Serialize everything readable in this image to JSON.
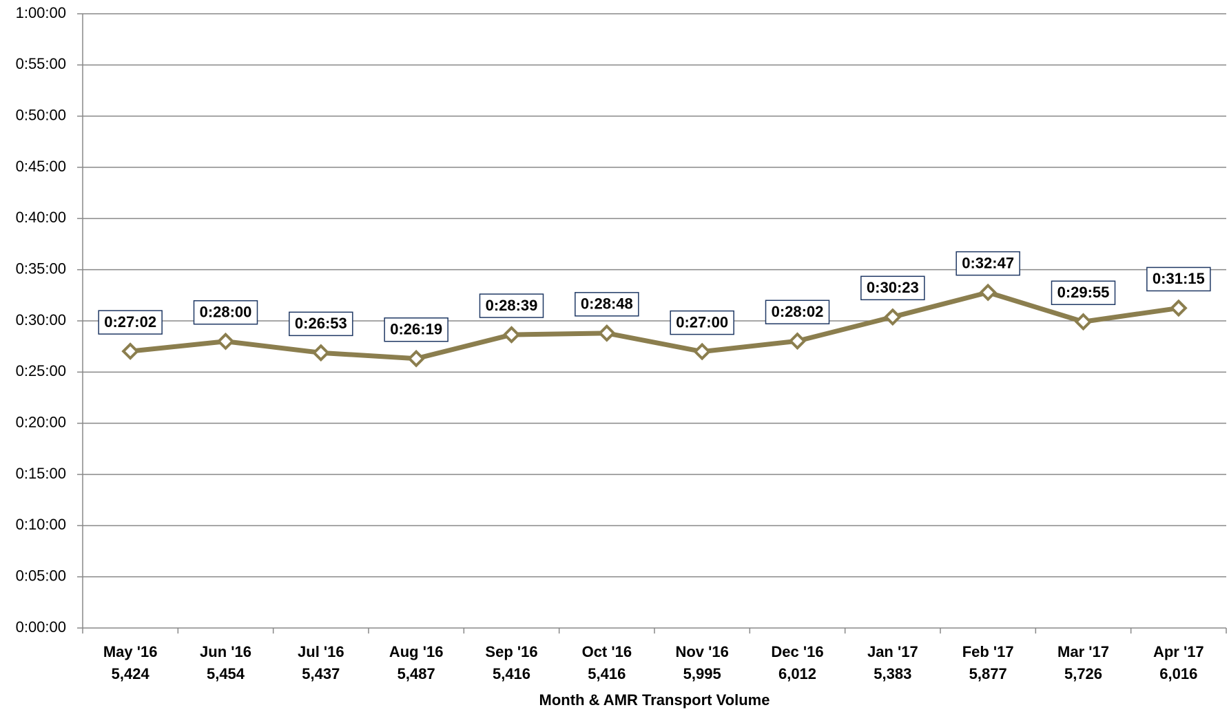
{
  "chart_data": {
    "type": "line",
    "x_label": "Month & AMR Transport Volume",
    "categories": [
      "May '16",
      "Jun '16",
      "Jul '16",
      "Aug '16",
      "Sep '16",
      "Oct '16",
      "Nov '16",
      "Dec '16",
      "Jan '17",
      "Feb '17",
      "Mar '17",
      "Apr '17"
    ],
    "volumes": [
      "5,424",
      "5,454",
      "5,437",
      "5,487",
      "5,416",
      "5,416",
      "5,995",
      "6,012",
      "5,383",
      "5,877",
      "5,726",
      "6,016"
    ],
    "series": [
      {
        "color": "#8b7e4e",
        "values": [
          1622,
          1680,
          1613,
          1579,
          1719,
          1728,
          1620,
          1682,
          1823,
          1967,
          1795,
          1875
        ],
        "value_labels": [
          "0:27:02",
          "0:28:00",
          "0:26:53",
          "0:26:19",
          "0:28:39",
          "0:28:48",
          "0:27:00",
          "0:28:02",
          "0:30:23",
          "0:32:47",
          "0:29:55",
          "0:31:15"
        ]
      }
    ],
    "ylim": [
      0,
      3600
    ],
    "yticks": [
      {
        "value": 0,
        "label": "0:00:00"
      },
      {
        "value": 300,
        "label": "0:05:00"
      },
      {
        "value": 600,
        "label": "0:10:00"
      },
      {
        "value": 900,
        "label": "0:15:00"
      },
      {
        "value": 1200,
        "label": "0:20:00"
      },
      {
        "value": 1500,
        "label": "0:25:00"
      },
      {
        "value": 1800,
        "label": "0:30:00"
      },
      {
        "value": 2100,
        "label": "0:35:00"
      },
      {
        "value": 2400,
        "label": "0:40:00"
      },
      {
        "value": 2700,
        "label": "0:45:00"
      },
      {
        "value": 3000,
        "label": "0:50:00"
      },
      {
        "value": 3300,
        "label": "0:55:00"
      },
      {
        "value": 3600,
        "label": "1:00:00"
      }
    ],
    "grid": true
  }
}
